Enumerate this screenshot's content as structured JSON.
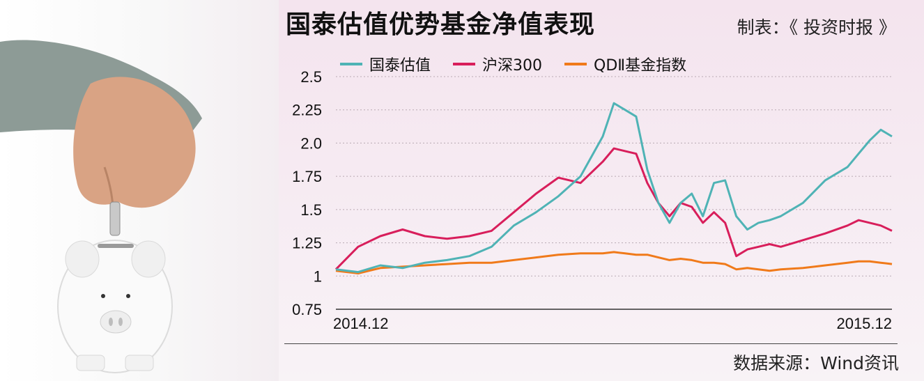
{
  "header": {
    "title": "国泰估值优势基金净值表现",
    "credit": "制表：《 投资时报 》"
  },
  "footer": {
    "source": "数据来源：Wind资讯"
  },
  "colors": {
    "guotai": "#4fb3b5",
    "hs300": "#d81e5b",
    "qdii": "#f07a1a"
  },
  "chart_data": {
    "type": "line",
    "title": "国泰估值优势基金净值表现",
    "xlabel": "",
    "ylabel": "",
    "ylim": [
      0.75,
      2.5
    ],
    "yticks": [
      "2.5",
      "2.25",
      "2.0",
      "1.75",
      "1.5",
      "1.25",
      "1",
      "0.75"
    ],
    "yticks_values": [
      2.5,
      2.25,
      2.0,
      1.75,
      1.5,
      1.25,
      1.0,
      0.75
    ],
    "xlim": [
      0,
      1
    ],
    "x_tick_labels": [
      {
        "label": "2014.12",
        "x": 0
      },
      {
        "label": "2015.12",
        "x": 1
      }
    ],
    "grid": "horizontal dotted",
    "legend_placement": "top-left",
    "x": [
      0,
      0.04,
      0.08,
      0.12,
      0.16,
      0.2,
      0.24,
      0.28,
      0.32,
      0.36,
      0.4,
      0.44,
      0.48,
      0.5,
      0.52,
      0.54,
      0.56,
      0.58,
      0.6,
      0.62,
      0.64,
      0.66,
      0.68,
      0.7,
      0.72,
      0.74,
      0.76,
      0.78,
      0.8,
      0.84,
      0.88,
      0.92,
      0.94,
      0.96,
      0.98,
      1.0
    ],
    "series": [
      {
        "name": "国泰估值",
        "color": "#4fb3b5",
        "values": [
          1.05,
          1.03,
          1.08,
          1.06,
          1.1,
          1.12,
          1.15,
          1.22,
          1.38,
          1.48,
          1.6,
          1.75,
          2.05,
          2.3,
          2.25,
          2.2,
          1.8,
          1.55,
          1.4,
          1.55,
          1.62,
          1.45,
          1.7,
          1.72,
          1.45,
          1.35,
          1.4,
          1.42,
          1.45,
          1.55,
          1.72,
          1.82,
          1.92,
          2.02,
          2.1,
          2.05
        ]
      },
      {
        "name": "沪深300",
        "color": "#d81e5b",
        "values": [
          1.05,
          1.22,
          1.3,
          1.35,
          1.3,
          1.28,
          1.3,
          1.34,
          1.48,
          1.62,
          1.74,
          1.7,
          1.86,
          1.96,
          1.94,
          1.92,
          1.7,
          1.55,
          1.45,
          1.55,
          1.52,
          1.4,
          1.48,
          1.4,
          1.15,
          1.2,
          1.22,
          1.24,
          1.22,
          1.27,
          1.32,
          1.38,
          1.42,
          1.4,
          1.38,
          1.34
        ]
      },
      {
        "name": "QDⅡ基金指数",
        "color": "#f07a1a",
        "values": [
          1.04,
          1.02,
          1.06,
          1.07,
          1.08,
          1.09,
          1.1,
          1.1,
          1.12,
          1.14,
          1.16,
          1.17,
          1.17,
          1.18,
          1.17,
          1.16,
          1.16,
          1.14,
          1.12,
          1.13,
          1.12,
          1.1,
          1.1,
          1.09,
          1.05,
          1.06,
          1.05,
          1.04,
          1.05,
          1.06,
          1.08,
          1.1,
          1.11,
          1.11,
          1.1,
          1.09
        ]
      }
    ]
  }
}
